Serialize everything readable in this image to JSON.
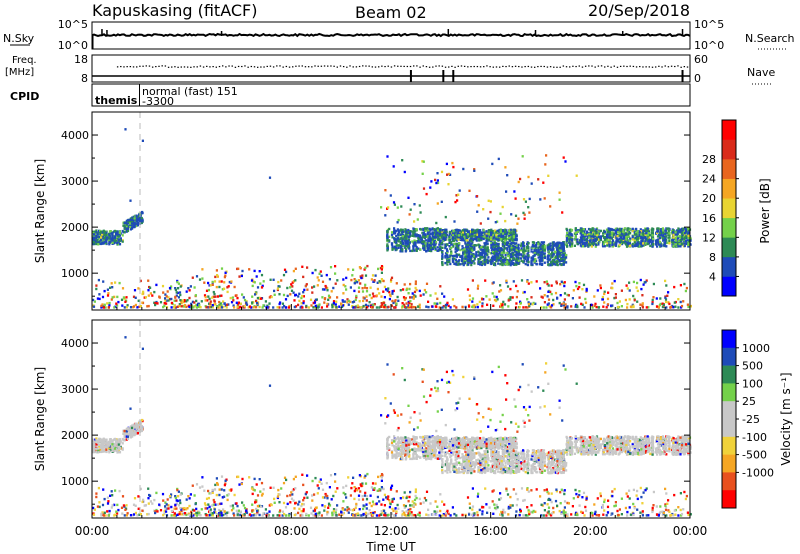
{
  "header": {
    "station": "Kapuskasing (fitACF)",
    "beam": "Beam 02",
    "date": "20/Sep/2018"
  },
  "strips": {
    "nsky": {
      "left_label": "N.Sky",
      "left_ticks": [
        "10^5",
        "10^0"
      ],
      "right_label": "N.Search",
      "right_ticks": [
        "10^5",
        "10^0"
      ]
    },
    "freq": {
      "left_label_1": "Freq.",
      "left_label_2": "[MHz]",
      "left_ticks": [
        "18",
        "8"
      ],
      "right_label": "Nave",
      "right_ticks": [
        "60",
        "0"
      ]
    },
    "cpid": {
      "label": "CPID",
      "segments": [
        {
          "name": "themis",
          "start_hour": 0.0
        },
        {
          "name": "normal (fast) 151",
          "start_hour": 1.9
        },
        {
          "name": "-3300",
          "start_hour": 1.9
        }
      ]
    }
  },
  "colors": {
    "power": [
      "#0000ff",
      "#1e4bb8",
      "#2d8a55",
      "#74d14a",
      "#e8d432",
      "#f5a623",
      "#e8651e",
      "#d92b1a",
      "#ff0000"
    ],
    "velocity": [
      "#ff0000",
      "#e8501e",
      "#f5a623",
      "#f0d23a",
      "#c8c8c8",
      "#c8c8c8",
      "#74d14a",
      "#2d8a55",
      "#1e4bb8",
      "#0000ff"
    ]
  },
  "chart_data": [
    {
      "type": "heatmap",
      "quantity": "power",
      "ylabel": "Slant Range [km]",
      "ylim": [
        200,
        4500
      ],
      "yticks": [
        "1000",
        "2000",
        "3000",
        "4000"
      ],
      "xlim_hours": [
        0,
        24
      ],
      "colorbar": {
        "label": "Power [dB]",
        "range": [
          0,
          32
        ],
        "ticks": [
          "4",
          "8",
          "12",
          "16",
          "20",
          "24",
          "28"
        ]
      },
      "echo_regions": [
        {
          "t_start": 0.0,
          "t_end": 1.2,
          "range_center": 1800,
          "thickness": 150,
          "power": 10
        },
        {
          "t_start": 1.2,
          "t_end": 2.0,
          "range_center": 2150,
          "thickness": 120,
          "power": 8
        },
        {
          "t_start": 11.8,
          "t_end": 14.0,
          "range_center": 1750,
          "thickness": 250,
          "power": 9
        },
        {
          "t_start": 14.0,
          "t_end": 19.0,
          "range_center": 1450,
          "thickness": 250,
          "power": 8
        },
        {
          "t_start": 14.0,
          "t_end": 17.0,
          "range_center": 1850,
          "thickness": 120,
          "power": 11
        },
        {
          "t_start": 19.0,
          "t_end": 24.0,
          "range_center": 1800,
          "thickness": 200,
          "power": 11
        }
      ]
    },
    {
      "type": "heatmap",
      "quantity": "velocity",
      "ylabel": "Slant Range [km]",
      "ylim": [
        200,
        4500
      ],
      "yticks": [
        "1000",
        "2000",
        "3000",
        "4000"
      ],
      "xlim_hours": [
        0,
        24
      ],
      "xticks": [
        "00:00",
        "04:00",
        "08:00",
        "12:00",
        "16:00",
        "20:00",
        "00:00"
      ],
      "xlabel": "Time UT",
      "colorbar": {
        "label": "Velocity [m s⁻¹]",
        "ticks": [
          "1000",
          "500",
          "100",
          "25",
          "-25",
          "-100",
          "-500",
          "-1000"
        ]
      }
    }
  ]
}
